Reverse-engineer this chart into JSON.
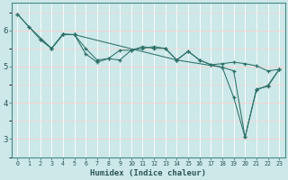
{
  "xlabel": "Humidex (Indice chaleur)",
  "bg_color": "#cce8e8",
  "line_color": "#2d7068",
  "grid_major_color": "#ffd0d0",
  "grid_vert_color": "#ffffff",
  "xlim": [
    -0.5,
    23.5
  ],
  "ylim": [
    2.5,
    6.75
  ],
  "xticks": [
    0,
    1,
    2,
    3,
    4,
    5,
    6,
    7,
    8,
    9,
    10,
    11,
    12,
    13,
    14,
    15,
    16,
    17,
    18,
    19,
    20,
    21,
    22,
    23
  ],
  "yticks": [
    3,
    4,
    5,
    6
  ],
  "series1_x": [
    0,
    1,
    2,
    3,
    4,
    5,
    6,
    7,
    8,
    9,
    10,
    11,
    12,
    13,
    14,
    15,
    16,
    17,
    18,
    19,
    20,
    21,
    22,
    23
  ],
  "series1_y": [
    6.45,
    6.1,
    5.75,
    5.5,
    5.9,
    5.88,
    5.5,
    5.18,
    5.22,
    5.45,
    5.45,
    5.5,
    5.55,
    5.5,
    5.18,
    5.42,
    5.18,
    5.05,
    5.08,
    5.12,
    5.08,
    5.02,
    4.88,
    4.92
  ],
  "series2_x": [
    2,
    3,
    4,
    5,
    6,
    7,
    8,
    9,
    10,
    11,
    12,
    13,
    14,
    15,
    16,
    17,
    18,
    19,
    20,
    21,
    22,
    23
  ],
  "series2_y": [
    5.75,
    5.5,
    5.88,
    5.88,
    5.35,
    5.12,
    5.22,
    5.18,
    5.45,
    5.55,
    5.5,
    5.5,
    5.18,
    5.42,
    5.18,
    5.05,
    4.98,
    4.88,
    3.05,
    4.38,
    4.45,
    4.92
  ],
  "series3_x": [
    0,
    1,
    3,
    4,
    5,
    14,
    18,
    19,
    20,
    21,
    22,
    23
  ],
  "series3_y": [
    6.45,
    6.1,
    5.5,
    5.88,
    5.88,
    5.18,
    4.98,
    4.15,
    3.05,
    4.35,
    4.48,
    4.92
  ]
}
